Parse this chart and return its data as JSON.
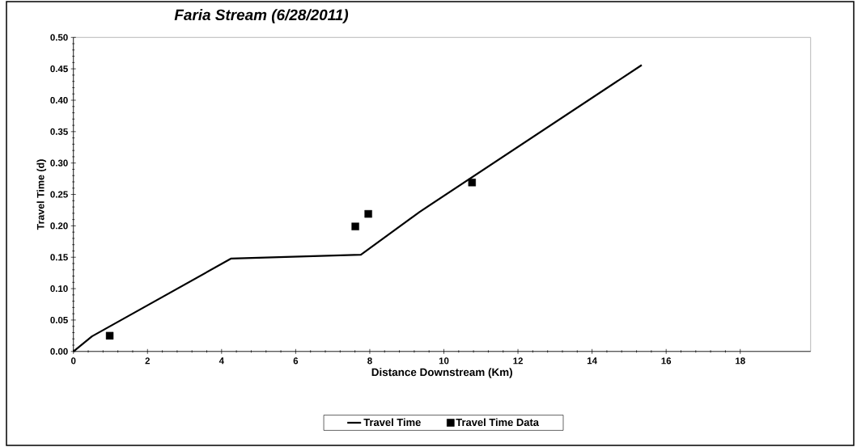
{
  "chart_data": {
    "type": "line",
    "title": "Faria Stream (6/28/2011)",
    "xlabel": "Distance Downstream (Km)",
    "ylabel": "Travel Time (d)",
    "xlim": [
      0,
      19.9
    ],
    "xticks": [
      0,
      2,
      4,
      6,
      8,
      10,
      12,
      14,
      16,
      18
    ],
    "ylim": [
      0,
      0.5
    ],
    "yticks": [
      {
        "value": 0,
        "label": "0.00"
      },
      {
        "value": 0.05,
        "label": "0.05"
      },
      {
        "value": 0.1,
        "label": "0.10"
      },
      {
        "value": 0.15,
        "label": "0.15"
      },
      {
        "value": 0.2,
        "label": "0.20"
      },
      {
        "value": 0.25,
        "label": "0.25"
      },
      {
        "value": 0.3,
        "label": "0.30"
      },
      {
        "value": 0.35,
        "label": "0.35"
      },
      {
        "value": 0.4,
        "label": "0.40"
      },
      {
        "value": 0.45,
        "label": "0.45"
      },
      {
        "value": 0.5,
        "label": "0.50"
      }
    ],
    "legend": "bottom",
    "series": [
      {
        "name": "Travel Time",
        "color": "#000000",
        "marker": "none",
        "line_style": "solid",
        "x": [
          0,
          0.5,
          4.26,
          7.76,
          9.34,
          15.34
        ],
        "values": [
          0,
          0.024,
          0.148,
          0.154,
          0.222,
          0.456
        ]
      },
      {
        "name": "Travel Time Data",
        "type": "scatter",
        "color": "#000000",
        "marker": "square",
        "x": [
          0.98,
          7.61,
          7.96,
          10.76
        ],
        "values": [
          0.025,
          0.199,
          0.219,
          0.269
        ]
      }
    ]
  }
}
